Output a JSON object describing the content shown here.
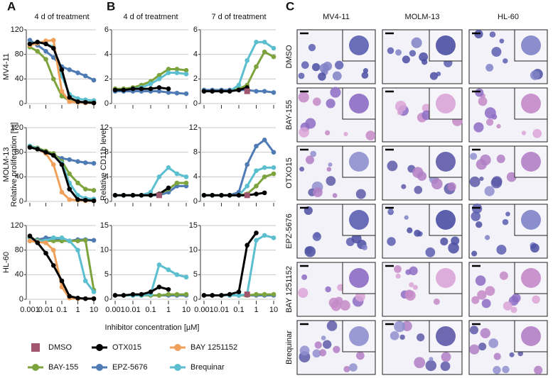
{
  "panel_labels": [
    "A",
    "B",
    "C"
  ],
  "column_titles": [
    "4 d of treatment",
    "4 d of treatment",
    "7 d of treatment"
  ],
  "row_labels": [
    "MV4-11",
    "MOLM-13",
    "HL-60"
  ],
  "y_labels": [
    "Relative proliferation [%]",
    "Relative CD11b level"
  ],
  "x_label": "Inhibitor concentration [µM]",
  "legend": [
    {
      "name": "DMSO",
      "color": "#a0566e",
      "marker": "square"
    },
    {
      "name": "OTX015",
      "color": "#000000",
      "marker": "circle"
    },
    {
      "name": "BAY 1251152",
      "color": "#f0a05a",
      "marker": "circle"
    },
    {
      "name": "BAY-155",
      "color": "#7da33c",
      "marker": "circle"
    },
    {
      "name": "EPZ-5676",
      "color": "#4f7bb5",
      "marker": "circle"
    },
    {
      "name": "Brequinar",
      "color": "#5bbfcf",
      "marker": "circle"
    }
  ],
  "chart_data": [
    {
      "type": "line",
      "log_x": true,
      "x": [
        0.001,
        0.003,
        0.01,
        0.03,
        0.1,
        0.3,
        1,
        3,
        10
      ],
      "xlim": [
        0.001,
        10
      ],
      "xticks": [
        0.001,
        0.01,
        0.1,
        1,
        10
      ],
      "ylim": [
        0,
        120
      ],
      "yticks": [
        0,
        40,
        80,
        120
      ],
      "grid": true,
      "series": [
        {
          "name": "EPZ-5676",
          "values": [
            103,
            95,
            85,
            75,
            60,
            55,
            50,
            45,
            38
          ]
        },
        {
          "name": "BAY-155",
          "values": [
            92,
            85,
            72,
            40,
            12,
            5,
            3,
            2,
            2
          ]
        },
        {
          "name": "Brequinar",
          "values": [
            98,
            100,
            97,
            92,
            45,
            15,
            8,
            6,
            5
          ]
        },
        {
          "name": "BAY 1251152",
          "values": [
            95,
            98,
            102,
            103,
            20,
            3,
            2,
            1,
            1
          ]
        },
        {
          "name": "OTX015",
          "values": [
            97,
            100,
            97,
            90,
            55,
            10,
            3,
            2,
            1
          ]
        }
      ]
    },
    {
      "type": "line",
      "log_x": true,
      "x": [
        0.001,
        0.003,
        0.01,
        0.03,
        0.1,
        0.3,
        1,
        3,
        10
      ],
      "xlim": [
        0.001,
        10
      ],
      "xticks": [
        0.001,
        0.01,
        0.1,
        1,
        10
      ],
      "ylim": [
        0,
        6
      ],
      "yticks": [
        0,
        2,
        4,
        6
      ],
      "grid": true,
      "series": [
        {
          "name": "EPZ-5676",
          "values": [
            1,
            1,
            1,
            1,
            1,
            1,
            0.9,
            0.85,
            0.8
          ]
        },
        {
          "name": "BAY-155",
          "values": [
            1.2,
            1.2,
            1.3,
            1.5,
            1.8,
            2.3,
            2.8,
            2.8,
            2.7
          ]
        },
        {
          "name": "Brequinar",
          "values": [
            1.1,
            1.1,
            1.2,
            1.3,
            1.6,
            2,
            2.5,
            2.5,
            2.4
          ]
        },
        {
          "name": "OTX015",
          "values": [
            1.1,
            1.1,
            1.2,
            1.2,
            1.2,
            1.3,
            1.2,
            null,
            null
          ]
        }
      ]
    },
    {
      "type": "line",
      "log_x": true,
      "x": [
        0.001,
        0.003,
        0.01,
        0.03,
        0.1,
        0.3,
        1,
        3,
        10
      ],
      "xlim": [
        0.001,
        10
      ],
      "xticks": [
        0.001,
        0.01,
        0.1,
        1,
        10
      ],
      "ylim": [
        0,
        6
      ],
      "yticks": [
        0,
        2,
        4,
        6
      ],
      "grid": true,
      "series": [
        {
          "name": "EPZ-5676",
          "values": [
            1.1,
            1.1,
            1.1,
            1.1,
            1.1,
            1.1,
            1,
            1,
            0.9
          ]
        },
        {
          "name": "BAY-155",
          "values": [
            1,
            1,
            1,
            1,
            1.2,
            1.5,
            3,
            4.2,
            3.8
          ]
        },
        {
          "name": "Brequinar",
          "values": [
            1,
            1,
            1,
            1,
            1.5,
            3.5,
            5,
            5,
            4.5
          ]
        },
        {
          "name": "OTX015",
          "values": [
            1,
            1,
            1,
            1,
            1.1,
            1.3,
            null,
            null,
            null
          ]
        },
        {
          "name": "DMSO",
          "values": [
            null,
            null,
            null,
            null,
            null,
            1,
            null,
            null,
            null
          ]
        }
      ]
    },
    {
      "type": "line",
      "log_x": true,
      "x": [
        0.001,
        0.003,
        0.01,
        0.03,
        0.1,
        0.3,
        1,
        3,
        10
      ],
      "xlim": [
        0.001,
        10
      ],
      "xticks": [
        0.001,
        0.01,
        0.1,
        1,
        10
      ],
      "ylim": [
        0,
        120
      ],
      "yticks": [
        0,
        40,
        80,
        120
      ],
      "grid": true,
      "series": [
        {
          "name": "EPZ-5676",
          "values": [
            90,
            85,
            80,
            75,
            70,
            68,
            65,
            63,
            62
          ]
        },
        {
          "name": "BAY-155",
          "values": [
            90,
            87,
            82,
            78,
            65,
            45,
            30,
            20,
            18
          ]
        },
        {
          "name": "Brequinar",
          "values": [
            90,
            86,
            80,
            75,
            62,
            30,
            10,
            5,
            4
          ]
        },
        {
          "name": "BAY 1251152",
          "values": [
            88,
            85,
            78,
            60,
            15,
            3,
            2,
            1,
            1
          ]
        },
        {
          "name": "OTX015",
          "values": [
            88,
            85,
            80,
            75,
            60,
            20,
            3,
            2,
            1
          ]
        }
      ]
    },
    {
      "type": "line",
      "log_x": true,
      "x": [
        0.001,
        0.003,
        0.01,
        0.03,
        0.1,
        0.3,
        1,
        3,
        10
      ],
      "xlim": [
        0.001,
        10
      ],
      "xticks": [
        0.001,
        0.01,
        0.1,
        1,
        10
      ],
      "ylim": [
        0,
        12
      ],
      "yticks": [
        0,
        4,
        8,
        12
      ],
      "grid": true,
      "series": [
        {
          "name": "EPZ-5676",
          "values": [
            1,
            1,
            1,
            1,
            1,
            1,
            1.5,
            2.5,
            2.5
          ]
        },
        {
          "name": "BAY-155",
          "values": [
            1,
            1,
            1,
            1,
            1,
            1.2,
            2,
            3,
            3
          ]
        },
        {
          "name": "Brequinar",
          "values": [
            1,
            1,
            1,
            1,
            1.5,
            4,
            5.5,
            4.5,
            4
          ]
        },
        {
          "name": "OTX015",
          "values": [
            1,
            1,
            1,
            1,
            1,
            1.2,
            2.2,
            null,
            null
          ]
        },
        {
          "name": "DMSO",
          "values": [
            null,
            null,
            null,
            null,
            null,
            1,
            null,
            null,
            null
          ]
        }
      ]
    },
    {
      "type": "line",
      "log_x": true,
      "x": [
        0.001,
        0.003,
        0.01,
        0.03,
        0.1,
        0.3,
        1,
        3,
        10
      ],
      "xlim": [
        0.001,
        10
      ],
      "xticks": [
        0.001,
        0.01,
        0.1,
        1,
        10
      ],
      "ylim": [
        0,
        12
      ],
      "yticks": [
        0,
        4,
        8,
        12
      ],
      "grid": true,
      "series": [
        {
          "name": "EPZ-5676",
          "values": [
            1,
            1,
            1,
            1,
            1.5,
            6,
            9,
            10,
            8
          ]
        },
        {
          "name": "BAY-155",
          "values": [
            1,
            1,
            1,
            1,
            1,
            1.2,
            2.5,
            4,
            4.5
          ]
        },
        {
          "name": "Brequinar",
          "values": [
            1,
            1,
            1,
            1,
            1,
            2.5,
            5,
            5.5,
            5.5
          ]
        },
        {
          "name": "OTX015",
          "values": [
            1,
            1,
            1,
            1,
            1,
            1,
            1.2,
            1.4,
            null
          ]
        },
        {
          "name": "DMSO",
          "values": [
            null,
            null,
            null,
            null,
            null,
            1,
            null,
            null,
            null
          ]
        }
      ]
    },
    {
      "type": "line",
      "log_x": true,
      "x": [
        0.001,
        0.003,
        0.01,
        0.03,
        0.1,
        0.3,
        1,
        3,
        10
      ],
      "xlim": [
        0.001,
        10
      ],
      "xticks": [
        0.001,
        0.01,
        0.1,
        1,
        10
      ],
      "ylim": [
        0,
        120
      ],
      "yticks": [
        0,
        40,
        80,
        120
      ],
      "grid": true,
      "series": [
        {
          "name": "EPZ-5676",
          "values": [
            95,
            97,
            100,
            100,
            95,
            95,
            97,
            97,
            96
          ]
        },
        {
          "name": "BAY-155",
          "values": [
            100,
            96,
            95,
            95,
            95,
            95,
            95,
            96,
            15
          ]
        },
        {
          "name": "Brequinar",
          "values": [
            100,
            95,
            95,
            100,
            100,
            95,
            80,
            30,
            12
          ]
        },
        {
          "name": "BAY 1251152",
          "values": [
            95,
            93,
            92,
            80,
            20,
            2,
            1,
            1,
            1
          ]
        },
        {
          "name": "OTX015",
          "values": [
            103,
            92,
            75,
            55,
            30,
            5,
            2,
            1,
            1
          ]
        }
      ]
    },
    {
      "type": "line",
      "log_x": true,
      "x": [
        0.001,
        0.003,
        0.01,
        0.03,
        0.1,
        0.3,
        1,
        3,
        10
      ],
      "xlim": [
        0.001,
        10
      ],
      "xticks": [
        0.001,
        0.01,
        0.1,
        1,
        10
      ],
      "ylim": [
        0,
        15
      ],
      "yticks": [
        0,
        5,
        10,
        15
      ],
      "grid": true,
      "series": [
        {
          "name": "EPZ-5676",
          "values": [
            0.8,
            0.8,
            0.8,
            0.8,
            0.8,
            0.8,
            0.8,
            0.8,
            0.8
          ]
        },
        {
          "name": "BAY-155",
          "values": [
            0.8,
            0.8,
            0.8,
            0.8,
            0.8,
            0.8,
            1,
            1,
            1
          ]
        },
        {
          "name": "Brequinar",
          "values": [
            0.8,
            0.8,
            0.8,
            0.8,
            1,
            7,
            6,
            5,
            4.5
          ]
        },
        {
          "name": "OTX015",
          "values": [
            0.8,
            0.8,
            1,
            1,
            1.5,
            2.5,
            2,
            null,
            null
          ]
        }
      ]
    },
    {
      "type": "line",
      "log_x": true,
      "x": [
        0.001,
        0.003,
        0.01,
        0.03,
        0.1,
        0.3,
        1,
        3,
        10
      ],
      "xlim": [
        0.001,
        10
      ],
      "xticks": [
        0.001,
        0.01,
        0.1,
        1,
        10
      ],
      "ylim": [
        0,
        15
      ],
      "yticks": [
        0,
        5,
        10,
        15
      ],
      "grid": true,
      "series": [
        {
          "name": "EPZ-5676",
          "values": [
            0.8,
            0.8,
            0.8,
            0.8,
            0.8,
            0.8,
            0.8,
            0.8,
            0.8
          ]
        },
        {
          "name": "BAY-155",
          "values": [
            0.8,
            0.8,
            0.8,
            0.8,
            0.8,
            0.8,
            1,
            1,
            1
          ]
        },
        {
          "name": "Brequinar",
          "values": [
            0.8,
            0.8,
            0.8,
            0.8,
            0.8,
            1,
            12,
            13,
            12.5
          ]
        },
        {
          "name": "OTX015",
          "values": [
            0.8,
            0.8,
            0.8,
            1,
            1.5,
            11,
            13.5,
            null,
            null
          ]
        },
        {
          "name": "DMSO",
          "values": [
            null,
            null,
            null,
            null,
            null,
            1,
            null,
            null,
            null
          ]
        }
      ]
    }
  ],
  "micrographs": {
    "columns": [
      "MV4-11",
      "MOLM-13",
      "HL-60"
    ],
    "rows": [
      "DMSO",
      "BAY-155",
      "OTXO15",
      "EPZ-5676",
      "BAY 1251152",
      "Brequinar"
    ]
  }
}
